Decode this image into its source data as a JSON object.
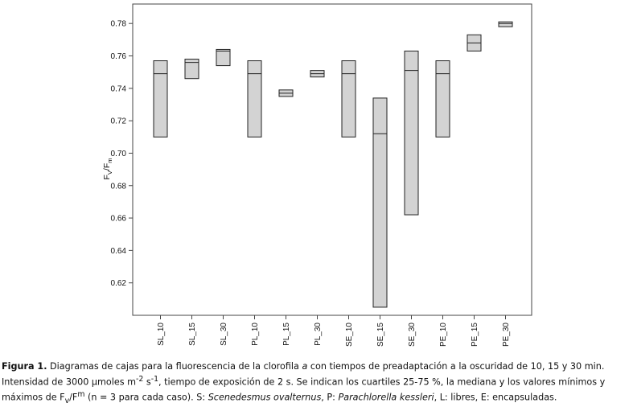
{
  "chart_data": {
    "type": "box",
    "ylabel_main": "F",
    "ylabel_sub1": "V",
    "ylabel_mid": "/F",
    "ylabel_sub2": "m",
    "ylim": [
      0.6,
      0.792
    ],
    "yticks": [
      0.62,
      0.64,
      0.66,
      0.68,
      0.7,
      0.72,
      0.74,
      0.76,
      0.78
    ],
    "ytick_labels": [
      "0.62",
      "0.64",
      "0.66",
      "0.68",
      "0.70",
      "0.72",
      "0.74",
      "0.76",
      "0.78"
    ],
    "categories": [
      "SL_10",
      "SL_15",
      "SL_30",
      "PL_10",
      "PL_15",
      "PL_30",
      "SE_10",
      "SE_15",
      "SE_30",
      "PE_10",
      "PE_15",
      "PE_30"
    ],
    "boxes": [
      {
        "q1": 0.71,
        "median": 0.749,
        "q3": 0.757
      },
      {
        "q1": 0.746,
        "median": 0.756,
        "q3": 0.758
      },
      {
        "q1": 0.754,
        "median": 0.763,
        "q3": 0.764
      },
      {
        "q1": 0.71,
        "median": 0.749,
        "q3": 0.757
      },
      {
        "q1": 0.735,
        "median": 0.737,
        "q3": 0.739
      },
      {
        "q1": 0.747,
        "median": 0.749,
        "q3": 0.751
      },
      {
        "q1": 0.71,
        "median": 0.749,
        "q3": 0.757
      },
      {
        "q1": 0.605,
        "median": 0.712,
        "q3": 0.734
      },
      {
        "q1": 0.662,
        "median": 0.751,
        "q3": 0.763
      },
      {
        "q1": 0.71,
        "median": 0.749,
        "q3": 0.757
      },
      {
        "q1": 0.763,
        "median": 0.768,
        "q3": 0.773
      },
      {
        "q1": 0.778,
        "median": 0.78,
        "q3": 0.781
      }
    ],
    "box_fill": "#d3d3d3",
    "grid": false
  },
  "caption": {
    "label": "Figura 1.",
    "text_1": " Diagramas de cajas para la fluorescencia de la clorofila ",
    "italic_a": "a",
    "text_2": " con tiempos de preadaptación a la oscuridad de 10, 15 y 30 min. Intensidad de 3000 μmoles m",
    "sup_1": "-2",
    "text_3": " s",
    "sup_2": "-1",
    "text_4": ", tiempo de exposición de 2 s. Se indican los cuartiles 25-75 %, la mediana y los valores mínimos y máximos de F",
    "sub_v": "v",
    "text_5": "/F",
    "sup_m": "m",
    "text_6": " (n = 3 para cada caso). S: ",
    "italic_s": "Scenedesmus ovalternus",
    "text_7": ", P: ",
    "italic_p": "Parachlorella kessleri",
    "text_8": ", L: libres, E: encapsuladas."
  }
}
